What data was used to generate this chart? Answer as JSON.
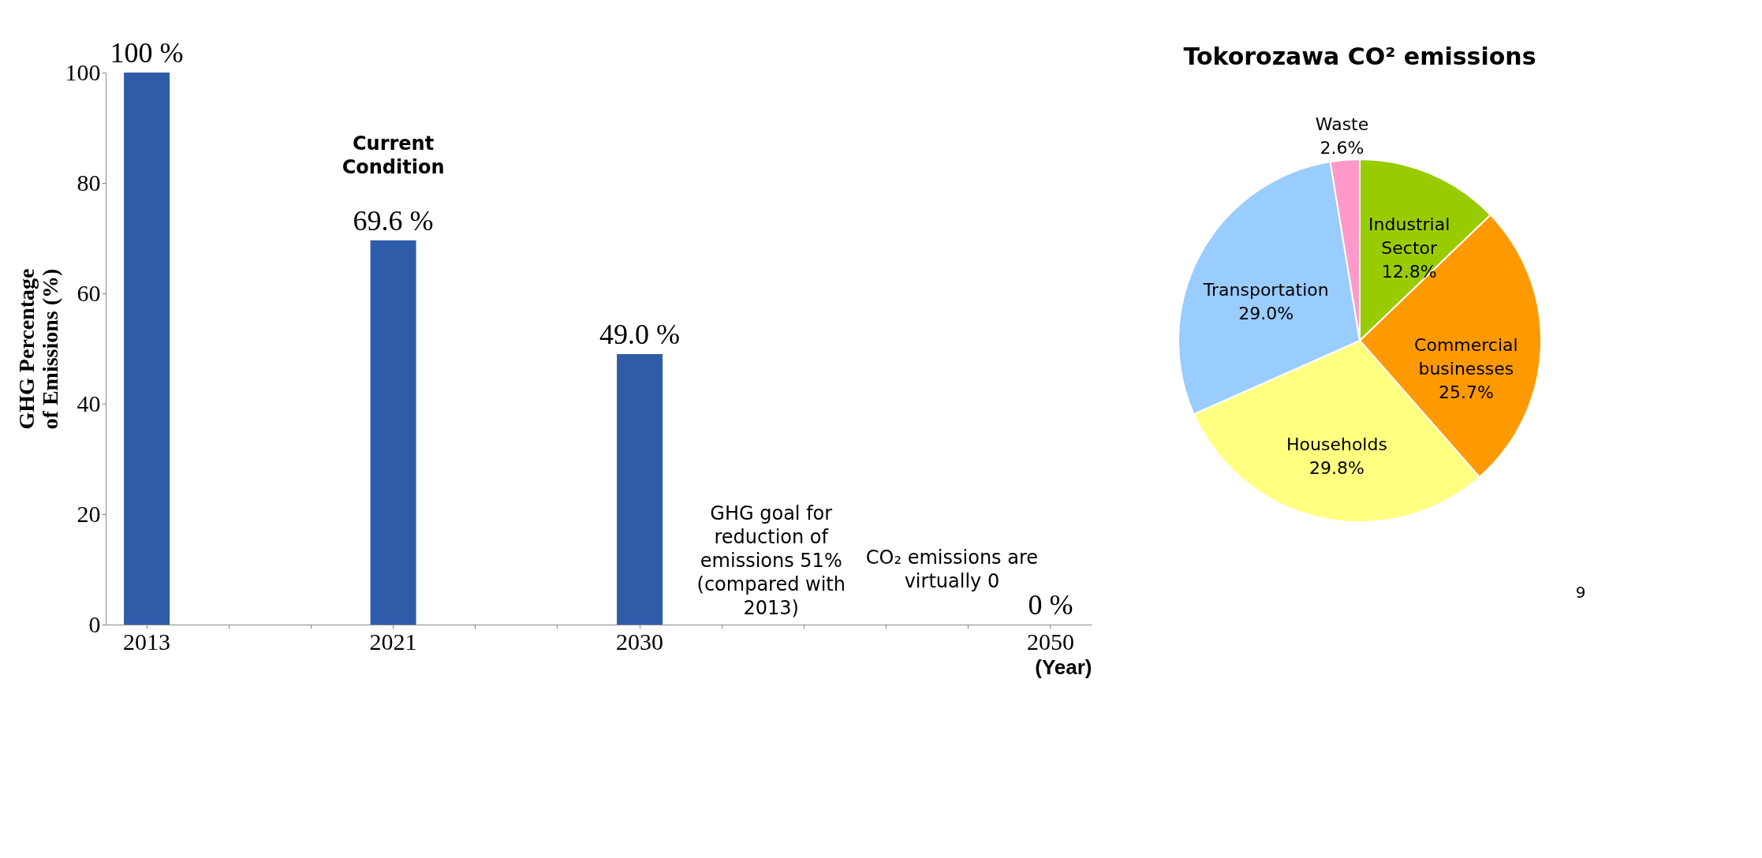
{
  "chart_data": [
    {
      "type": "bar",
      "categories": [
        "2013",
        null,
        null,
        "2021",
        null,
        null,
        "2030",
        null,
        null,
        null,
        null,
        "2050"
      ],
      "values": [
        100,
        null,
        null,
        69.6,
        null,
        null,
        49.0,
        null,
        null,
        null,
        null,
        0
      ],
      "value_labels": [
        "100 %",
        null,
        null,
        "69.6 %",
        null,
        null,
        "49.0 %",
        null,
        null,
        null,
        null,
        "0 %"
      ],
      "color": "#2f5ca8",
      "ylim": [
        0,
        100
      ],
      "yticks": [
        0,
        20,
        40,
        60,
        80,
        100
      ],
      "grid": false,
      "ylabel": "GHG Percentage of Emissions (%)",
      "xlabel": "(Year)",
      "annotations": [
        "Current Condition",
        "GHG goal for reduction of emissions 51% (compared with 2013)",
        "CO₂ emissions are virtually 0"
      ]
    },
    {
      "type": "pie",
      "title": "Tokorozawa CO² emissions",
      "categories": [
        "Industrial Sector",
        "Commercial businesses",
        "Households",
        "Transportation",
        "Waste"
      ],
      "values": [
        12.8,
        25.7,
        29.8,
        29.0,
        2.6
      ],
      "colors": [
        "#99cc00",
        "#ff9900",
        "#ffff80",
        "#99ccff",
        "#ff99cc"
      ],
      "data_labels": true,
      "value_labels": [
        "12.8%",
        "25.7%",
        "29.8%",
        "29.0%",
        "2.6%"
      ],
      "annotations": [
        "9"
      ]
    }
  ]
}
